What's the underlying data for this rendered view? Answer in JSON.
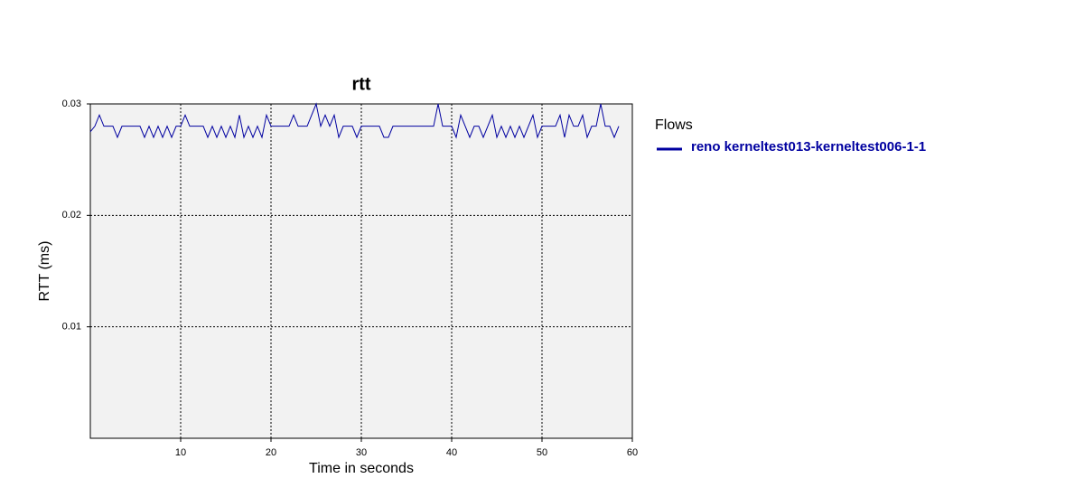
{
  "chart_data": {
    "type": "line",
    "title": "rtt",
    "x_label": "Time in seconds",
    "y_label": "RTT (ms)",
    "legend_title": "Flows",
    "legend": "right",
    "grid": true,
    "xlim": [
      0,
      60
    ],
    "xticks": [
      10,
      20,
      30,
      40,
      50,
      60
    ],
    "ylim": [
      0,
      0.03
    ],
    "yticks": [
      0.01,
      0.02,
      0.03
    ],
    "x": [
      0,
      0.5,
      1,
      1.5,
      2,
      2.5,
      3,
      3.5,
      4,
      4.5,
      5,
      5.5,
      6,
      6.5,
      7,
      7.5,
      8,
      8.5,
      9,
      9.5,
      10,
      10.5,
      11,
      11.5,
      12,
      12.5,
      13,
      13.5,
      14,
      14.5,
      15,
      15.5,
      16,
      16.5,
      17,
      17.5,
      18,
      18.5,
      19,
      19.5,
      20,
      20.5,
      21,
      21.5,
      22,
      22.5,
      23,
      23.5,
      24,
      24.5,
      25,
      25.5,
      26,
      26.5,
      27,
      27.5,
      28,
      28.5,
      29,
      29.5,
      30,
      30.5,
      31,
      31.5,
      32,
      32.5,
      33,
      33.5,
      34,
      34.5,
      35,
      35.5,
      36,
      36.5,
      37,
      37.5,
      38,
      38.5,
      39,
      39.5,
      40,
      40.5,
      41,
      41.5,
      42,
      42.5,
      43,
      43.5,
      44,
      44.5,
      45,
      45.5,
      46,
      46.5,
      47,
      47.5,
      48,
      48.5,
      49,
      49.5,
      50,
      50.5,
      51,
      51.5,
      52,
      52.5,
      53,
      53.5,
      54,
      54.5,
      55,
      55.5,
      56,
      56.5,
      57,
      57.5,
      58,
      58.5
    ],
    "series": [
      {
        "name": "reno kerneltest013-kerneltest006-1-1",
        "color": "#0000a0",
        "values": [
          0.0275,
          0.028,
          0.029,
          0.028,
          0.028,
          0.028,
          0.027,
          0.028,
          0.028,
          0.028,
          0.028,
          0.028,
          0.027,
          0.028,
          0.027,
          0.028,
          0.027,
          0.028,
          0.027,
          0.028,
          0.028,
          0.029,
          0.028,
          0.028,
          0.028,
          0.028,
          0.027,
          0.028,
          0.027,
          0.028,
          0.027,
          0.028,
          0.027,
          0.029,
          0.027,
          0.028,
          0.027,
          0.028,
          0.027,
          0.029,
          0.028,
          0.028,
          0.028,
          0.028,
          0.028,
          0.029,
          0.028,
          0.028,
          0.028,
          0.029,
          0.03,
          0.028,
          0.029,
          0.028,
          0.029,
          0.027,
          0.028,
          0.028,
          0.028,
          0.027,
          0.028,
          0.028,
          0.028,
          0.028,
          0.028,
          0.027,
          0.027,
          0.028,
          0.028,
          0.028,
          0.028,
          0.028,
          0.028,
          0.028,
          0.028,
          0.028,
          0.028,
          0.03,
          0.028,
          0.028,
          0.028,
          0.027,
          0.029,
          0.028,
          0.027,
          0.028,
          0.028,
          0.027,
          0.028,
          0.029,
          0.027,
          0.028,
          0.027,
          0.028,
          0.027,
          0.028,
          0.027,
          0.028,
          0.029,
          0.027,
          0.028,
          0.028,
          0.028,
          0.028,
          0.029,
          0.027,
          0.029,
          0.028,
          0.028,
          0.029,
          0.027,
          0.028,
          0.028,
          0.03,
          0.028,
          0.028,
          0.027,
          0.028
        ]
      }
    ]
  }
}
